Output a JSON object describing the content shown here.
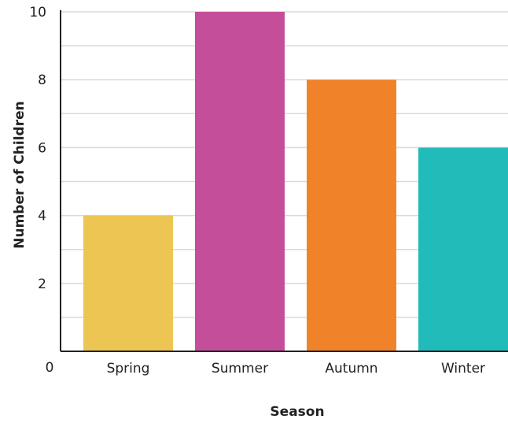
{
  "chart_data": {
    "type": "bar",
    "categories": [
      "Spring",
      "Summer",
      "Autumn",
      "Winter"
    ],
    "values": [
      4,
      10,
      8,
      6
    ],
    "colors": [
      "#EDC552",
      "#C54E9A",
      "#F0832A",
      "#21BCB9"
    ],
    "xlabel": "Season",
    "ylabel": "Number of Children",
    "ylim": [
      0,
      10
    ],
    "y_ticks": [
      "0",
      "2",
      "4",
      "6",
      "8",
      "10"
    ],
    "grid": true,
    "grid_step": 1
  }
}
